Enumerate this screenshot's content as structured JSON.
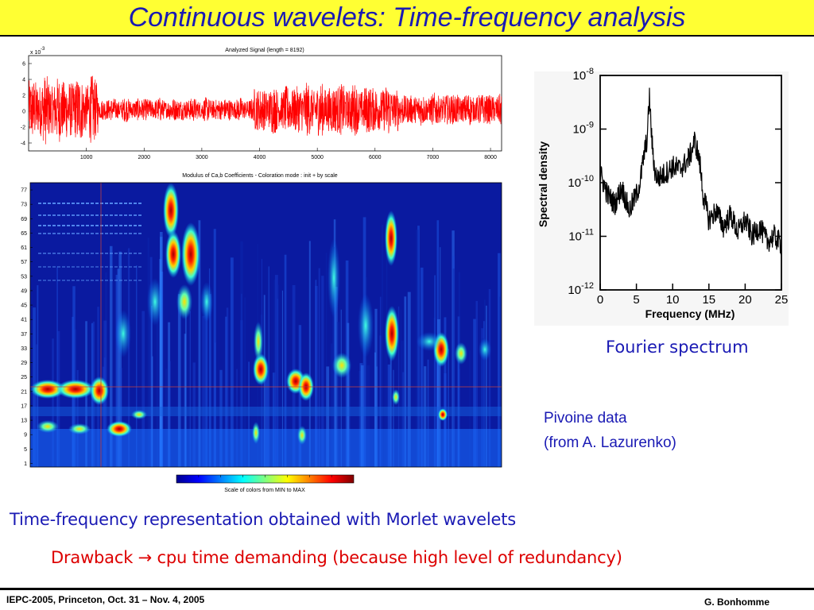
{
  "slide": {
    "title": "Continuous wavelets: Time-frequency analysis",
    "caption_fourier": "Fourier spectrum",
    "pivoine_line1": "Pivoine data",
    "pivoine_line2": "(from A. Lazurenko)",
    "caption_line1": "Time-frequency representation obtained with Morlet wavelets",
    "caption_line2_prefix": "Drawback",
    "caption_line2_arrow": "→",
    "caption_line2_rest": "cpu time demanding (because high level of redundancy)",
    "footer_left": "IEPC-2005, Princeton, Oct. 31 – Nov. 4, 2005",
    "footer_right": "G. Bonhomme"
  },
  "signal_plot": {
    "title": "Analyzed Signal  (length = 8192)",
    "exponent": "x 10",
    "exponent_power": "-3",
    "yticks": [
      "6",
      "4",
      "2",
      "0",
      "-2",
      "-4"
    ],
    "xticks": [
      "1000",
      "2000",
      "3000",
      "4000",
      "5000",
      "6000",
      "7000",
      "8000"
    ],
    "color": "#ff0000"
  },
  "scalogram": {
    "title": "Modulus of Ca,b Coefficients  - Coloration mode : init + by scale",
    "scale_labels": [
      "77",
      "73",
      "69",
      "65",
      "61",
      "57",
      "53",
      "49",
      "45",
      "41",
      "37",
      "33",
      "29",
      "25",
      "21",
      "17",
      "13",
      "9",
      "5",
      "1"
    ],
    "colorbar_label": "Scale of colors from MIN to MAX"
  },
  "chart_data": [
    {
      "type": "line",
      "title": "Analyzed Signal  (length = 8192)",
      "xlabel": "",
      "ylabel": "",
      "xlim": [
        0,
        8192
      ],
      "ylim": [
        -5,
        7
      ],
      "y_multiplier": "x 10^-3",
      "series": [
        {
          "values_description_segments": [
            {
              "x": [
                0,
                1200
              ],
              "amplitude": 4.5
            },
            {
              "x": [
                1200,
                3900
              ],
              "amplitude": 1.6
            },
            {
              "x": [
                3900,
                4600
              ],
              "amplitude": 3.2
            },
            {
              "x": [
                4600,
                5600
              ],
              "amplitude": 3.6
            },
            {
              "x": [
                5600,
                6400
              ],
              "amplitude": 3.4
            },
            {
              "x": [
                6400,
                8192
              ],
              "amplitude": 2.2
            }
          ]
        }
      ]
    },
    {
      "type": "line",
      "title": "",
      "xlabel": "Frequency (MHz)",
      "ylabel": "Spectral density",
      "xlim": [
        0,
        25
      ],
      "ylim": [
        1e-12,
        1e-08
      ],
      "yscale": "log",
      "xticks": [
        "0",
        "5",
        "10",
        "15",
        "20",
        "25"
      ],
      "yticks": [
        "10-8",
        "10-9",
        "10-10",
        "10-11",
        "10-12"
      ],
      "series": [
        {
          "x": [
            0,
            1,
            2,
            3,
            4,
            5,
            5.5,
            6,
            6.5,
            6.8,
            7,
            7.3,
            7.6,
            8,
            9,
            10,
            11,
            12,
            12.5,
            13,
            13.4,
            13.8,
            14.2,
            15,
            16,
            17,
            18,
            19,
            20,
            21,
            22,
            23,
            24,
            25
          ],
          "y": [
            1.5e-10,
            6e-11,
            4e-11,
            8e-11,
            3e-11,
            6e-11,
            1e-10,
            3e-10,
            7e-10,
            4e-09,
            1.2e-09,
            3e-10,
            1.5e-10,
            1.2e-10,
            1.5e-10,
            2e-10,
            1.8e-10,
            2.5e-10,
            3.5e-10,
            6e-10,
            4e-10,
            2e-10,
            6e-11,
            2e-11,
            3e-11,
            1.5e-11,
            2.5e-11,
            1.2e-11,
            2e-11,
            1e-11,
            1.5e-11,
            8e-12,
            1e-11,
            7e-12
          ]
        }
      ]
    }
  ],
  "spectrum_plot": {
    "ylabel": "Spectral density",
    "xlabel": "Frequency (MHz)",
    "xticks": [
      "0",
      "5",
      "10",
      "15",
      "20",
      "25"
    ],
    "ytick_base": "10",
    "ytick_exps": [
      "-8",
      "-9",
      "-10",
      "-11",
      "-12"
    ]
  }
}
